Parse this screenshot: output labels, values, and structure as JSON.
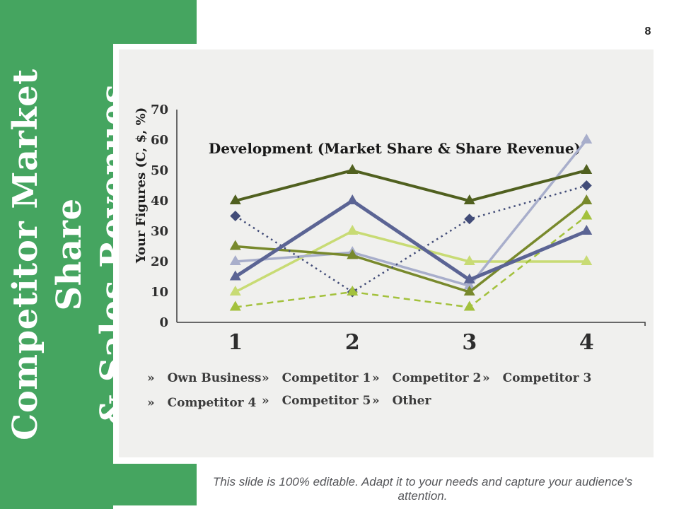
{
  "page": {
    "number": "8"
  },
  "sidebar": {
    "title_line1": "Competitor Market Share",
    "title_line2": "& Sales Revenues",
    "background_color": "#45a560",
    "text_color": "#ffffff"
  },
  "caption": "This slide is 100% editable. Adapt it to your needs and capture your audience's attention.",
  "legend": {
    "bullet": "»"
  },
  "chart_data": {
    "type": "line",
    "title": "Development (Market Share & Share Revenue)",
    "xlabel": "",
    "ylabel": "Your Figures (C, $, %)",
    "categories": [
      "1",
      "2",
      "3",
      "4"
    ],
    "ylim": [
      0,
      70
    ],
    "ytick_step": 10,
    "grid": false,
    "legend_position": "bottom",
    "panel_background": "#f0f0ee",
    "axis_color": "#3b3b3b",
    "series": [
      {
        "name": "Own Business",
        "values": [
          40,
          50,
          40,
          50
        ],
        "color": "#50601f",
        "style": "solid",
        "marker": "triangle",
        "width": 4
      },
      {
        "name": "Competitor 1",
        "values": [
          35,
          10,
          34,
          45
        ],
        "color": "#424c78",
        "style": "dotted",
        "marker": "diamond",
        "width": 2.5
      },
      {
        "name": "Competitor 2",
        "values": [
          15,
          40,
          14,
          30
        ],
        "color": "#5b6494",
        "style": "solid",
        "marker": "triangle",
        "width": 5
      },
      {
        "name": "Competitor 3",
        "values": [
          10,
          30,
          20,
          20
        ],
        "color": "#c8db74",
        "style": "solid",
        "marker": "triangle",
        "width": 3.5
      },
      {
        "name": "Competitor 4",
        "values": [
          25,
          22,
          10,
          40
        ],
        "color": "#78892c",
        "style": "solid",
        "marker": "triangle",
        "width": 3.5
      },
      {
        "name": "Competitor 5",
        "values": [
          20,
          23,
          12,
          60
        ],
        "color": "#a8aecb",
        "style": "solid",
        "marker": "triangle",
        "width": 3.5
      },
      {
        "name": "Other",
        "values": [
          5,
          10,
          5,
          35
        ],
        "color": "#a3c13c",
        "style": "dashed",
        "marker": "triangle",
        "width": 2.5
      }
    ],
    "draw_order": [
      3,
      5,
      4,
      1,
      6,
      2,
      0
    ]
  }
}
